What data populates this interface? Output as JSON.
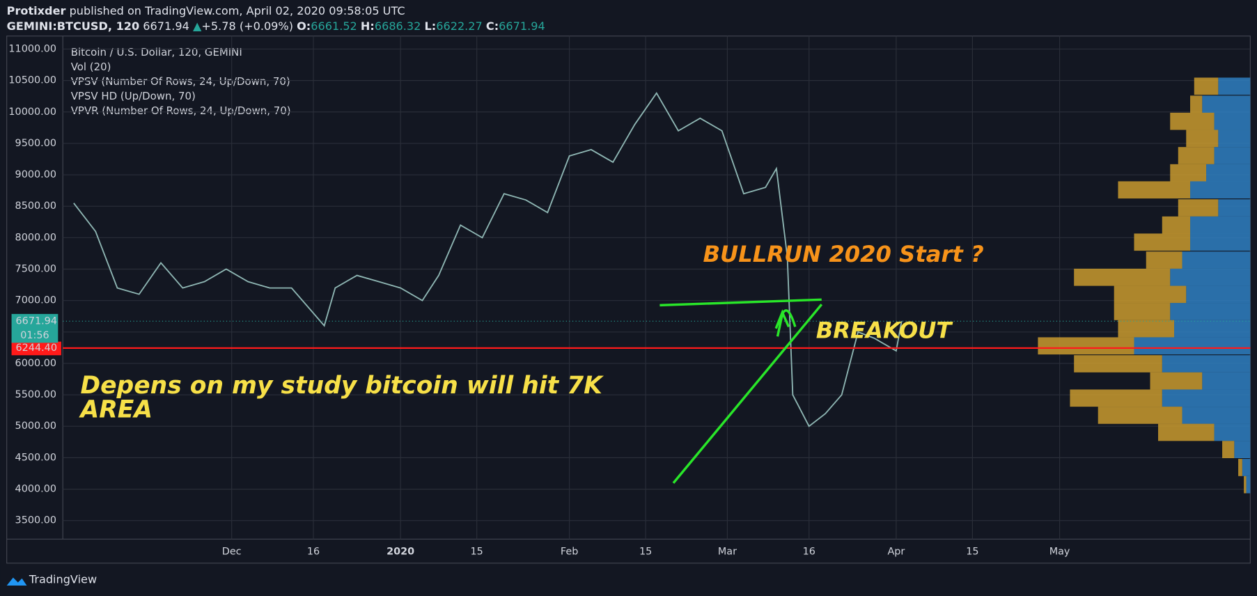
{
  "header": {
    "author": "Protixder",
    "published": "published on TradingView.com, April 02, 2020 09:58:05 UTC",
    "symbol": "GEMINI:BTCUSD, 120",
    "last": "6671.94",
    "arrow": "▲",
    "change": "+5.78 (+0.09%)",
    "o_label": "O:",
    "o": "6661.52",
    "h_label": "H:",
    "h": "6686.32",
    "l_label": "L:",
    "l": "6622.27",
    "c_label": "C:",
    "c": "6671.94"
  },
  "legend": [
    "Bitcoin / U.S. Dollar, 120, GEMINI",
    "Vol (20)",
    "VPSV (Number Of Rows, 24, Up/Down, 70)",
    "VPSV HD (Up/Down, 70)",
    "VPVR (Number Of Rows, 24, Up/Down, 70)"
  ],
  "footer": "TradingView",
  "chart_data": {
    "type": "line",
    "color": "#8fb7b4",
    "x": [
      "2019-11-02",
      "2019-11-06",
      "2019-11-10",
      "2019-11-14",
      "2019-11-18",
      "2019-11-22",
      "2019-11-26",
      "2019-11-30",
      "2019-12-04",
      "2019-12-08",
      "2019-12-12",
      "2019-12-16",
      "2019-12-18",
      "2019-12-20",
      "2019-12-24",
      "2019-12-28",
      "2020-01-01",
      "2020-01-05",
      "2020-01-08",
      "2020-01-12",
      "2020-01-16",
      "2020-01-20",
      "2020-01-24",
      "2020-01-28",
      "2020-02-01",
      "2020-02-05",
      "2020-02-09",
      "2020-02-13",
      "2020-02-17",
      "2020-02-21",
      "2020-02-25",
      "2020-02-29",
      "2020-03-04",
      "2020-03-08",
      "2020-03-10",
      "2020-03-12",
      "2020-03-13",
      "2020-03-16",
      "2020-03-19",
      "2020-03-22",
      "2020-03-25",
      "2020-03-28",
      "2020-04-01",
      "2020-04-02"
    ],
    "series": [
      {
        "name": "Bitcoin / U.S. Dollar",
        "values": [
          8550,
          8100,
          7200,
          7100,
          7600,
          7200,
          7300,
          7500,
          7300,
          7200,
          7200,
          6800,
          6600,
          7200,
          7400,
          7300,
          7200,
          7000,
          7400,
          8200,
          8000,
          8700,
          8600,
          8400,
          9300,
          9400,
          9200,
          9800,
          10300,
          9700,
          9900,
          9700,
          8700,
          8800,
          9100,
          7700,
          5500,
          5000,
          5200,
          5500,
          6500,
          6400,
          6200,
          6671.94
        ]
      }
    ],
    "xlim": [
      "2019-10-31",
      "2020-06-05"
    ],
    "xticks": [
      {
        "value": "2019-12-01",
        "label": "Dec"
      },
      {
        "value": "2019-12-16",
        "label": "16"
      },
      {
        "value": "2020-01-01",
        "label": "2020"
      },
      {
        "value": "2020-01-15",
        "label": "15"
      },
      {
        "value": "2020-02-01",
        "label": "Feb"
      },
      {
        "value": "2020-02-15",
        "label": "15"
      },
      {
        "value": "2020-03-01",
        "label": "Mar"
      },
      {
        "value": "2020-03-16",
        "label": "16"
      },
      {
        "value": "2020-04-01",
        "label": "Apr"
      },
      {
        "value": "2020-04-15",
        "label": "15"
      },
      {
        "value": "2020-05-01",
        "label": "May"
      }
    ],
    "ylim": [
      3205,
      11207
    ],
    "yticks": [
      {
        "value": 3500,
        "label": "3500.00"
      },
      {
        "value": 4000,
        "label": "4000.00"
      },
      {
        "value": 4500,
        "label": "4500.00"
      },
      {
        "value": 5000,
        "label": "5000.00"
      },
      {
        "value": 5500,
        "label": "5500.00"
      },
      {
        "value": 6000,
        "label": "6000.00"
      },
      {
        "value": 6500,
        "label": "6500.00"
      },
      {
        "value": 7000,
        "label": "7000.00"
      },
      {
        "value": 7500,
        "label": "7500.00"
      },
      {
        "value": 8000,
        "label": "8000.00"
      },
      {
        "value": 8500,
        "label": "8500.00"
      },
      {
        "value": 9000,
        "label": "9000.00"
      },
      {
        "value": 9500,
        "label": "9500.00"
      },
      {
        "value": 10000,
        "label": "10000.00"
      },
      {
        "value": 10500,
        "label": "10500.00"
      },
      {
        "value": 11000,
        "label": "11000.00"
      }
    ],
    "grid": true,
    "last_price": {
      "value": 6671.94,
      "label": "6671.94",
      "countdown": "01:56"
    },
    "support": {
      "value": 6244.4,
      "label": "6244.40",
      "color": "#ff1a1a"
    },
    "volume_profile": {
      "prices": [
        10409,
        10123,
        9851,
        9578,
        9305,
        9032,
        8760,
        8474,
        8201,
        7929,
        7643,
        7370,
        7097,
        6825,
        6552,
        6279,
        5994,
        5721,
        5448,
        5175,
        4903,
        4630,
        4344,
        4071
      ],
      "up": [
        40,
        60,
        45,
        40,
        45,
        55,
        75,
        40,
        75,
        75,
        85,
        100,
        80,
        100,
        95,
        145,
        110,
        60,
        110,
        85,
        45,
        20,
        10,
        5
      ],
      "down": [
        30,
        15,
        55,
        40,
        45,
        45,
        90,
        50,
        35,
        70,
        45,
        120,
        90,
        70,
        70,
        120,
        110,
        65,
        115,
        105,
        70,
        15,
        5,
        3
      ],
      "up_color": "#2f7fc1",
      "down_color": "#c99a2e"
    },
    "annotations": [
      {
        "text": "BULLRUN 2020 Start ?",
        "color": "#f7931a"
      },
      {
        "text": "BREAKOUT",
        "color": "#f7e048"
      },
      {
        "text": "Depens on my study bitcoin will hit 7K",
        "color": "#f7e048"
      },
      {
        "text": "AREA",
        "color": "#f7e048"
      }
    ]
  }
}
